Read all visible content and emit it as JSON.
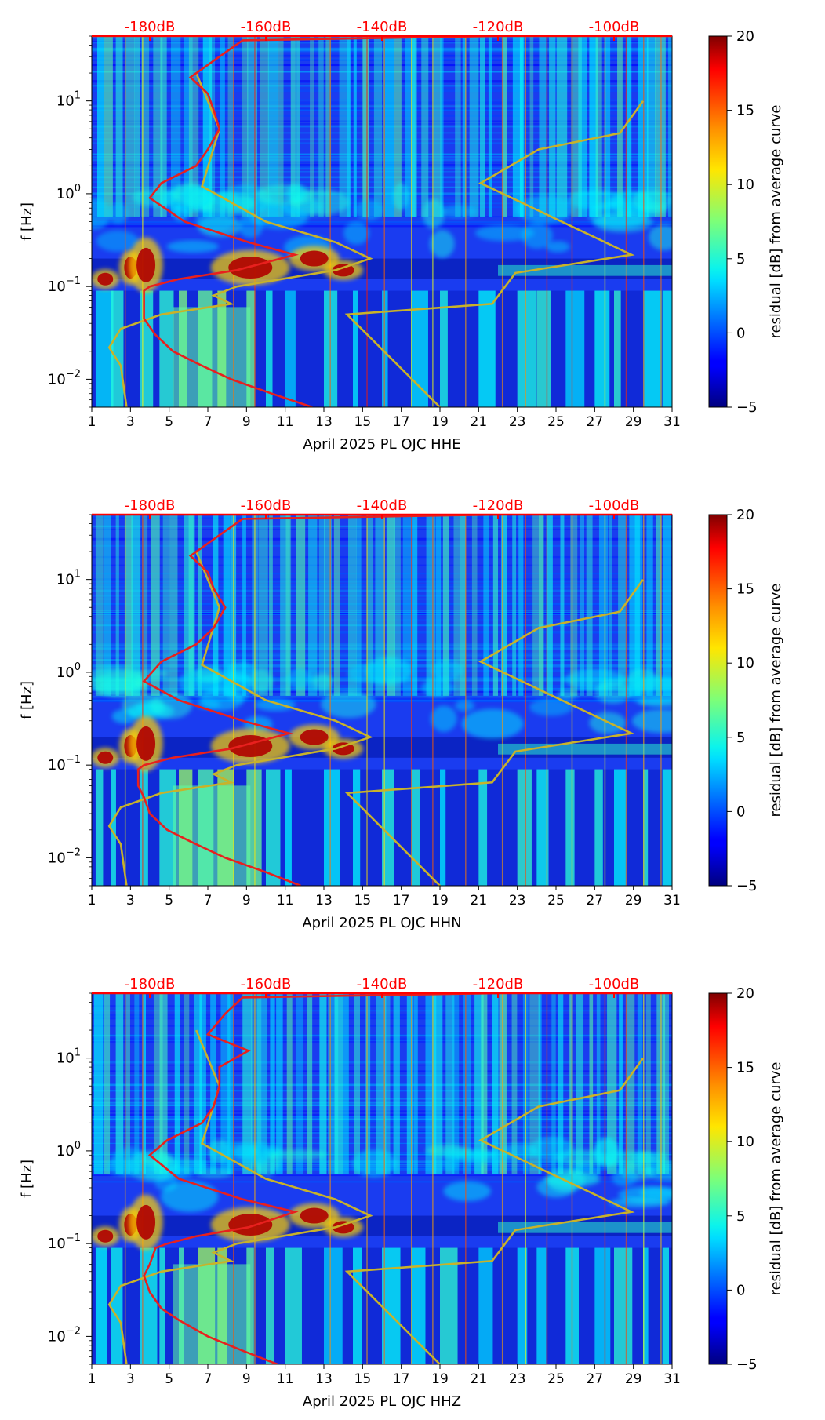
{
  "colors": {
    "psd_curve": "#e8201e",
    "noise_model": "#c8b22a",
    "top_axis": "#ff0000"
  },
  "colorbar": {
    "label": "residual [dB] from average curve",
    "ticks": [
      "20",
      "15",
      "10",
      "5",
      "0",
      "−5"
    ],
    "range": [
      -5,
      20
    ]
  },
  "chart_data": [
    {
      "type": "heatmap",
      "title": "",
      "xlabel": "April 2025 PL OJC  HHE",
      "ylabel": "f [Hz]",
      "x_ticks": [
        "1",
        "3",
        "5",
        "7",
        "9",
        "11",
        "13",
        "15",
        "17",
        "19",
        "21",
        "23",
        "25",
        "27",
        "29",
        "31"
      ],
      "xlim": [
        1,
        31
      ],
      "ylim": [
        0.005,
        50
      ],
      "y_scale": "log",
      "y_ticks": [
        {
          "base": "10",
          "exp": "1"
        },
        {
          "base": "10",
          "exp": "0"
        },
        {
          "base": "10",
          "exp": "−1"
        },
        {
          "base": "10",
          "exp": "−2"
        }
      ],
      "top_axis": {
        "labels": [
          "-180dB",
          "-160dB",
          "-140dB",
          "-120dB",
          "-100dB"
        ],
        "range": [
          -190,
          -90
        ]
      },
      "psd_curve_db": [
        {
          "f": 0.005,
          "db": -152
        },
        {
          "f": 0.007,
          "db": -159
        },
        {
          "f": 0.01,
          "db": -166
        },
        {
          "f": 0.015,
          "db": -172
        },
        {
          "f": 0.02,
          "db": -176
        },
        {
          "f": 0.03,
          "db": -179
        },
        {
          "f": 0.045,
          "db": -181
        },
        {
          "f": 0.06,
          "db": -181
        },
        {
          "f": 0.09,
          "db": -181
        },
        {
          "f": 0.1,
          "db": -180
        },
        {
          "f": 0.12,
          "db": -175
        },
        {
          "f": 0.15,
          "db": -165
        },
        {
          "f": 0.22,
          "db": -155
        },
        {
          "f": 0.3,
          "db": -163
        },
        {
          "f": 0.5,
          "db": -174
        },
        {
          "f": 0.9,
          "db": -180
        },
        {
          "f": 1.3,
          "db": -178
        },
        {
          "f": 2.0,
          "db": -172
        },
        {
          "f": 3.0,
          "db": -170
        },
        {
          "f": 5.0,
          "db": -168
        },
        {
          "f": 8.0,
          "db": -169
        },
        {
          "f": 12.0,
          "db": -170
        },
        {
          "f": 18.0,
          "db": -173
        },
        {
          "f": 30.0,
          "db": -168
        },
        {
          "f": 45.0,
          "db": -164
        },
        {
          "f": 50.0,
          "db": -120
        }
      ],
      "noise_model_db": {
        "low": [
          {
            "f": 0.005,
            "db": -184
          },
          {
            "f": 0.014,
            "db": -185
          },
          {
            "f": 0.022,
            "db": -187
          },
          {
            "f": 0.035,
            "db": -185
          },
          {
            "f": 0.05,
            "db": -178
          },
          {
            "f": 0.065,
            "db": -166
          },
          {
            "f": 0.08,
            "db": -169
          },
          {
            "f": 0.1,
            "db": -165
          },
          {
            "f": 0.15,
            "db": -148
          },
          {
            "f": 0.2,
            "db": -142
          },
          {
            "f": 0.3,
            "db": -148
          },
          {
            "f": 0.5,
            "db": -160
          },
          {
            "f": 1.2,
            "db": -171
          },
          {
            "f": 5.0,
            "db": -168
          },
          {
            "f": 20.0,
            "db": -172
          }
        ],
        "high": [
          {
            "f": 0.005,
            "db": -130
          },
          {
            "f": 0.05,
            "db": -146
          },
          {
            "f": 0.065,
            "db": -121
          },
          {
            "f": 0.14,
            "db": -117
          },
          {
            "f": 0.22,
            "db": -97
          },
          {
            "f": 1.3,
            "db": -123
          },
          {
            "f": 3.0,
            "db": -113
          },
          {
            "f": 4.5,
            "db": -99
          },
          {
            "f": 10.0,
            "db": -95
          }
        ]
      }
    },
    {
      "type": "heatmap",
      "title": "",
      "xlabel": "April 2025 PL OJC  HHN",
      "ylabel": "f [Hz]",
      "x_ticks": [
        "1",
        "3",
        "5",
        "7",
        "9",
        "11",
        "13",
        "15",
        "17",
        "19",
        "21",
        "23",
        "25",
        "27",
        "29",
        "31"
      ],
      "xlim": [
        1,
        31
      ],
      "ylim": [
        0.005,
        50
      ],
      "y_scale": "log",
      "y_ticks": [
        {
          "base": "10",
          "exp": "1"
        },
        {
          "base": "10",
          "exp": "0"
        },
        {
          "base": "10",
          "exp": "−1"
        },
        {
          "base": "10",
          "exp": "−2"
        }
      ],
      "top_axis": {
        "labels": [
          "-180dB",
          "-160dB",
          "-140dB",
          "-120dB",
          "-100dB"
        ],
        "range": [
          -190,
          -90
        ]
      },
      "psd_curve_db": [
        {
          "f": 0.005,
          "db": -154
        },
        {
          "f": 0.007,
          "db": -160
        },
        {
          "f": 0.01,
          "db": -167
        },
        {
          "f": 0.015,
          "db": -173
        },
        {
          "f": 0.02,
          "db": -177
        },
        {
          "f": 0.03,
          "db": -180
        },
        {
          "f": 0.045,
          "db": -181
        },
        {
          "f": 0.06,
          "db": -182
        },
        {
          "f": 0.09,
          "db": -182
        },
        {
          "f": 0.1,
          "db": -181
        },
        {
          "f": 0.12,
          "db": -176
        },
        {
          "f": 0.15,
          "db": -166
        },
        {
          "f": 0.22,
          "db": -156
        },
        {
          "f": 0.3,
          "db": -164
        },
        {
          "f": 0.5,
          "db": -175
        },
        {
          "f": 0.8,
          "db": -181
        },
        {
          "f": 1.3,
          "db": -178
        },
        {
          "f": 2.0,
          "db": -172
        },
        {
          "f": 3.0,
          "db": -169
        },
        {
          "f": 5.0,
          "db": -167
        },
        {
          "f": 8.0,
          "db": -169
        },
        {
          "f": 12.0,
          "db": -170
        },
        {
          "f": 18.0,
          "db": -173
        },
        {
          "f": 30.0,
          "db": -168
        },
        {
          "f": 45.0,
          "db": -164
        },
        {
          "f": 50.0,
          "db": -120
        }
      ],
      "noise_model_db": {
        "low": [
          {
            "f": 0.005,
            "db": -184
          },
          {
            "f": 0.014,
            "db": -185
          },
          {
            "f": 0.022,
            "db": -187
          },
          {
            "f": 0.035,
            "db": -185
          },
          {
            "f": 0.05,
            "db": -178
          },
          {
            "f": 0.065,
            "db": -166
          },
          {
            "f": 0.08,
            "db": -169
          },
          {
            "f": 0.1,
            "db": -165
          },
          {
            "f": 0.15,
            "db": -148
          },
          {
            "f": 0.2,
            "db": -142
          },
          {
            "f": 0.3,
            "db": -148
          },
          {
            "f": 0.5,
            "db": -160
          },
          {
            "f": 1.2,
            "db": -171
          },
          {
            "f": 5.0,
            "db": -168
          },
          {
            "f": 20.0,
            "db": -172
          }
        ],
        "high": [
          {
            "f": 0.005,
            "db": -130
          },
          {
            "f": 0.05,
            "db": -146
          },
          {
            "f": 0.065,
            "db": -121
          },
          {
            "f": 0.14,
            "db": -117
          },
          {
            "f": 0.22,
            "db": -97
          },
          {
            "f": 1.3,
            "db": -123
          },
          {
            "f": 3.0,
            "db": -113
          },
          {
            "f": 4.5,
            "db": -99
          },
          {
            "f": 10.0,
            "db": -95
          }
        ]
      }
    },
    {
      "type": "heatmap",
      "title": "",
      "xlabel": "April 2025 PL OJC  HHZ",
      "ylabel": "f [Hz]",
      "x_ticks": [
        "1",
        "3",
        "5",
        "7",
        "9",
        "11",
        "13",
        "15",
        "17",
        "19",
        "21",
        "23",
        "25",
        "27",
        "29",
        "31"
      ],
      "xlim": [
        1,
        31
      ],
      "ylim": [
        0.005,
        50
      ],
      "y_scale": "log",
      "y_ticks": [
        {
          "base": "10",
          "exp": "1"
        },
        {
          "base": "10",
          "exp": "0"
        },
        {
          "base": "10",
          "exp": "−1"
        },
        {
          "base": "10",
          "exp": "−2"
        }
      ],
      "top_axis": {
        "labels": [
          "-180dB",
          "-160dB",
          "-140dB",
          "-120dB",
          "-100dB"
        ],
        "range": [
          -190,
          -90
        ]
      },
      "psd_curve_db": [
        {
          "f": 0.005,
          "db": -158
        },
        {
          "f": 0.007,
          "db": -164
        },
        {
          "f": 0.01,
          "db": -170
        },
        {
          "f": 0.015,
          "db": -175
        },
        {
          "f": 0.02,
          "db": -178
        },
        {
          "f": 0.03,
          "db": -180
        },
        {
          "f": 0.045,
          "db": -181
        },
        {
          "f": 0.06,
          "db": -180
        },
        {
          "f": 0.09,
          "db": -179
        },
        {
          "f": 0.1,
          "db": -177
        },
        {
          "f": 0.12,
          "db": -172
        },
        {
          "f": 0.15,
          "db": -163
        },
        {
          "f": 0.22,
          "db": -155
        },
        {
          "f": 0.3,
          "db": -164
        },
        {
          "f": 0.5,
          "db": -175
        },
        {
          "f": 0.9,
          "db": -180
        },
        {
          "f": 1.3,
          "db": -177
        },
        {
          "f": 2.0,
          "db": -171
        },
        {
          "f": 3.0,
          "db": -169
        },
        {
          "f": 5.0,
          "db": -168
        },
        {
          "f": 8.0,
          "db": -168
        },
        {
          "f": 12.0,
          "db": -163
        },
        {
          "f": 18.0,
          "db": -170
        },
        {
          "f": 30.0,
          "db": -167
        },
        {
          "f": 45.0,
          "db": -164
        },
        {
          "f": 50.0,
          "db": -120
        }
      ],
      "noise_model_db": {
        "low": [
          {
            "f": 0.005,
            "db": -184
          },
          {
            "f": 0.014,
            "db": -185
          },
          {
            "f": 0.022,
            "db": -187
          },
          {
            "f": 0.035,
            "db": -185
          },
          {
            "f": 0.05,
            "db": -178
          },
          {
            "f": 0.065,
            "db": -166
          },
          {
            "f": 0.08,
            "db": -169
          },
          {
            "f": 0.1,
            "db": -165
          },
          {
            "f": 0.15,
            "db": -148
          },
          {
            "f": 0.2,
            "db": -142
          },
          {
            "f": 0.3,
            "db": -148
          },
          {
            "f": 0.5,
            "db": -160
          },
          {
            "f": 1.2,
            "db": -171
          },
          {
            "f": 5.0,
            "db": -168
          },
          {
            "f": 20.0,
            "db": -172
          }
        ],
        "high": [
          {
            "f": 0.005,
            "db": -130
          },
          {
            "f": 0.05,
            "db": -146
          },
          {
            "f": 0.065,
            "db": -121
          },
          {
            "f": 0.14,
            "db": -117
          },
          {
            "f": 0.22,
            "db": -97
          },
          {
            "f": 1.3,
            "db": -123
          },
          {
            "f": 3.0,
            "db": -113
          },
          {
            "f": 4.5,
            "db": -99
          },
          {
            "f": 10.0,
            "db": -95
          }
        ]
      }
    }
  ]
}
